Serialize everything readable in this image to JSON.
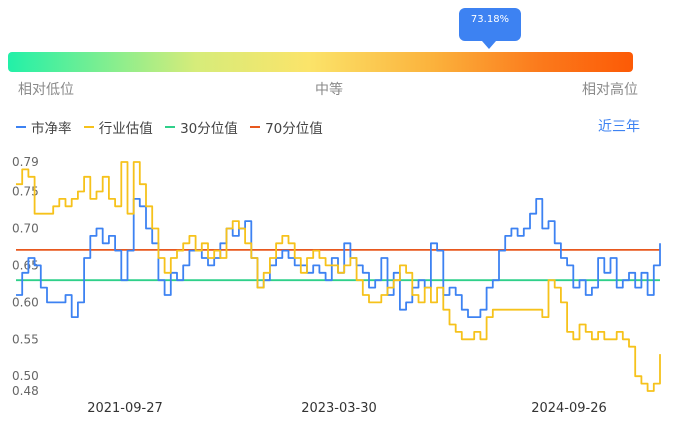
{
  "percentile_tooltip": "73.18%",
  "percentile_value": 73.18,
  "gauge": {
    "low_label": "相对低位",
    "mid_label": "中等",
    "high_label": "相对高位"
  },
  "period_label": "近三年",
  "colors": {
    "pb": "#3d82f2",
    "industry": "#f6c21b",
    "p30": "#2fd08a",
    "p70": "#e8581e",
    "accent": "#3d82f2"
  },
  "chart_data": {
    "type": "line",
    "y_ticks": [
      0.48,
      0.5,
      0.55,
      0.6,
      0.65,
      0.7,
      0.75,
      0.79
    ],
    "ylim": [
      0.48,
      0.79
    ],
    "x_ticks": [
      "2021-09-27",
      "2023-03-30",
      "2024-09-26"
    ],
    "series": [
      {
        "name": "市净率",
        "key": "pb",
        "color": "#3d82f2",
        "values": [
          0.61,
          0.64,
          0.66,
          0.65,
          0.62,
          0.6,
          0.6,
          0.6,
          0.61,
          0.58,
          0.6,
          0.66,
          0.69,
          0.7,
          0.68,
          0.69,
          0.67,
          0.63,
          0.67,
          0.74,
          0.73,
          0.7,
          0.68,
          0.63,
          0.61,
          0.64,
          0.63,
          0.65,
          0.67,
          0.67,
          0.66,
          0.65,
          0.66,
          0.68,
          0.7,
          0.69,
          0.7,
          0.71,
          0.66,
          0.62,
          0.63,
          0.65,
          0.66,
          0.67,
          0.66,
          0.65,
          0.65,
          0.64,
          0.65,
          0.64,
          0.63,
          0.66,
          0.64,
          0.68,
          0.66,
          0.65,
          0.64,
          0.62,
          0.63,
          0.66,
          0.61,
          0.64,
          0.59,
          0.6,
          0.62,
          0.63,
          0.62,
          0.68,
          0.67,
          0.61,
          0.62,
          0.61,
          0.59,
          0.58,
          0.58,
          0.59,
          0.62,
          0.63,
          0.67,
          0.69,
          0.7,
          0.69,
          0.7,
          0.72,
          0.74,
          0.7,
          0.71,
          0.68,
          0.66,
          0.65,
          0.62,
          0.63,
          0.61,
          0.62,
          0.66,
          0.64,
          0.66,
          0.62,
          0.63,
          0.64,
          0.62,
          0.64,
          0.61,
          0.65,
          0.68
        ]
      },
      {
        "name": "行业估值",
        "key": "industry",
        "color": "#f6c21b",
        "values": [
          0.76,
          0.78,
          0.77,
          0.72,
          0.72,
          0.72,
          0.73,
          0.74,
          0.73,
          0.74,
          0.75,
          0.77,
          0.74,
          0.75,
          0.77,
          0.74,
          0.73,
          0.79,
          0.72,
          0.79,
          0.76,
          0.73,
          0.7,
          0.66,
          0.64,
          0.66,
          0.67,
          0.68,
          0.69,
          0.67,
          0.68,
          0.66,
          0.67,
          0.66,
          0.7,
          0.71,
          0.7,
          0.68,
          0.66,
          0.62,
          0.64,
          0.66,
          0.68,
          0.69,
          0.68,
          0.66,
          0.64,
          0.66,
          0.67,
          0.66,
          0.65,
          0.65,
          0.64,
          0.65,
          0.66,
          0.63,
          0.61,
          0.6,
          0.6,
          0.61,
          0.62,
          0.63,
          0.65,
          0.64,
          0.61,
          0.6,
          0.62,
          0.6,
          0.62,
          0.59,
          0.57,
          0.56,
          0.55,
          0.55,
          0.56,
          0.55,
          0.58,
          0.59,
          0.59,
          0.59,
          0.59,
          0.59,
          0.59,
          0.59,
          0.59,
          0.58,
          0.63,
          0.62,
          0.6,
          0.56,
          0.55,
          0.57,
          0.56,
          0.55,
          0.56,
          0.55,
          0.55,
          0.56,
          0.55,
          0.54,
          0.5,
          0.49,
          0.48,
          0.49,
          0.53
        ]
      },
      {
        "name": "30分位值",
        "key": "p30",
        "color": "#2fd08a",
        "values": [
          0.63
        ]
      },
      {
        "name": "70分位值",
        "key": "p70",
        "color": "#e8581e",
        "values": [
          0.671
        ]
      }
    ]
  }
}
